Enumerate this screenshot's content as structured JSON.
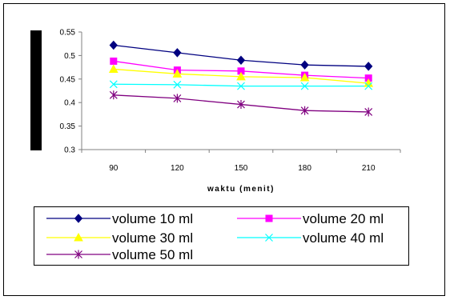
{
  "chart_data": {
    "type": "line",
    "title": "",
    "xlabel": "waktu (menit)",
    "ylabel": "",
    "categories": [
      "90",
      "120",
      "150",
      "180",
      "210"
    ],
    "ylim": [
      0.3,
      0.55
    ],
    "yticks": [
      "0.55",
      "0.5",
      "0.45",
      "0.4",
      "0.35",
      "0.3"
    ],
    "grid": false,
    "legend_position": "bottom",
    "series": [
      {
        "name": "volume 10 ml",
        "values": [
          0.522,
          0.506,
          0.49,
          0.48,
          0.477
        ],
        "color": "#000080",
        "marker": "diamond"
      },
      {
        "name": "volume 20 ml",
        "values": [
          0.488,
          0.469,
          0.467,
          0.458,
          0.452
        ],
        "color": "#ff00ff",
        "marker": "square"
      },
      {
        "name": "volume 30 ml",
        "values": [
          0.471,
          0.461,
          0.455,
          0.453,
          0.441
        ],
        "color": "#ffff00",
        "marker": "triangle"
      },
      {
        "name": "volume 40 ml",
        "values": [
          0.439,
          0.438,
          0.435,
          0.435,
          0.435
        ],
        "color": "#00ffff",
        "marker": "x"
      },
      {
        "name": "volume 50 ml",
        "values": [
          0.416,
          0.409,
          0.396,
          0.383,
          0.38
        ],
        "color": "#800080",
        "marker": "star"
      }
    ]
  }
}
